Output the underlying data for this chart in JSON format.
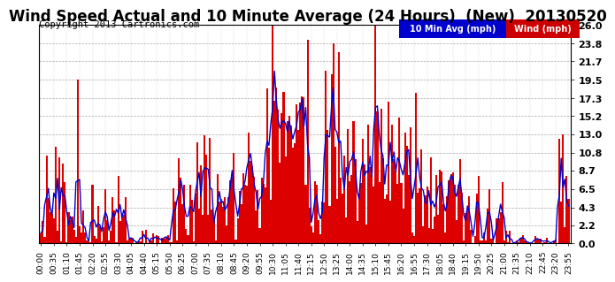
{
  "title": "Wind Speed Actual and 10 Minute Average (24 Hours)  (New)  20130520",
  "copyright": "Copyright 2013 Cartronics.com",
  "legend_10min_label": "10 Min Avg (mph)",
  "legend_wind_label": "Wind (mph)",
  "legend_10min_bg": "#0000cc",
  "legend_wind_bg": "#cc0000",
  "yticks": [
    0.0,
    2.2,
    4.3,
    6.5,
    8.7,
    10.8,
    13.0,
    15.2,
    17.3,
    19.5,
    21.7,
    23.8,
    26.0
  ],
  "ymin": 0.0,
  "ymax": 26.0,
  "bg_color": "#ffffff",
  "plot_bg_color": "#ffffff",
  "grid_color": "#aaaaaa",
  "bar_color": "#dd0000",
  "line_color": "#0000cc",
  "title_fontsize": 12,
  "copyright_fontsize": 7.5,
  "tick_label_fontsize": 6.5,
  "ytick_fontsize": 8,
  "tick_step": 7
}
